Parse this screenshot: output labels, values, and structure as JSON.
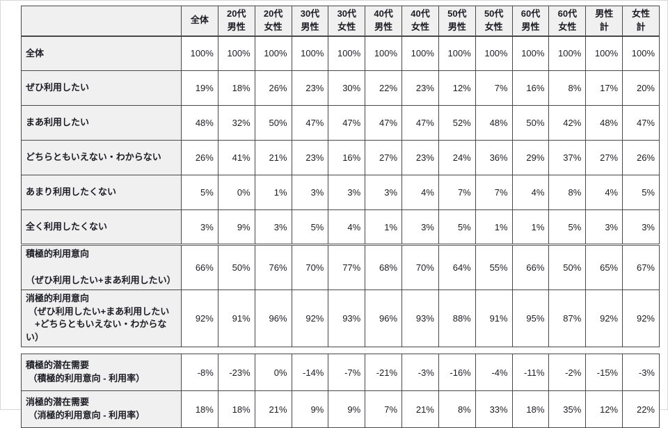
{
  "colors": {
    "frame": "#d8d8d8",
    "grid": "#474747",
    "header_bg": "#f0f0f0",
    "label_bg": "#f0f0f0",
    "cell_bg": "#ffffff",
    "text": "#1c1c24"
  },
  "header": {
    "corner": "",
    "columns": [
      "全体",
      "20代\n男性",
      "20代\n女性",
      "30代\n男性",
      "30代\n女性",
      "40代\n男性",
      "40代\n女性",
      "50代\n男性",
      "50代\n女性",
      "60代\n男性",
      "60代\n女性",
      "男性\n計",
      "女性\n計"
    ]
  },
  "responses": {
    "rows": [
      {
        "label": "全体",
        "values": [
          "100%",
          "100%",
          "100%",
          "100%",
          "100%",
          "100%",
          "100%",
          "100%",
          "100%",
          "100%",
          "100%",
          "100%",
          "100%"
        ]
      },
      {
        "label": "ぜひ利用したい",
        "values": [
          "19%",
          "18%",
          "26%",
          "23%",
          "30%",
          "22%",
          "23%",
          "12%",
          "7%",
          "16%",
          "8%",
          "17%",
          "20%"
        ]
      },
      {
        "label": "まあ利用したい",
        "values": [
          "48%",
          "32%",
          "50%",
          "47%",
          "47%",
          "47%",
          "47%",
          "52%",
          "48%",
          "50%",
          "42%",
          "48%",
          "47%"
        ]
      },
      {
        "label": "どちらともいえない・わからない",
        "values": [
          "26%",
          "41%",
          "21%",
          "23%",
          "16%",
          "27%",
          "23%",
          "24%",
          "36%",
          "29%",
          "37%",
          "27%",
          "26%"
        ]
      },
      {
        "label": "あまり利用したくない",
        "values": [
          "5%",
          "0%",
          "1%",
          "3%",
          "3%",
          "3%",
          "4%",
          "7%",
          "7%",
          "4%",
          "8%",
          "4%",
          "5%"
        ]
      },
      {
        "label": "全く利用したくない",
        "values": [
          "3%",
          "9%",
          "3%",
          "5%",
          "4%",
          "1%",
          "3%",
          "5%",
          "1%",
          "1%",
          "5%",
          "3%",
          "3%"
        ]
      }
    ]
  },
  "intent_summary": {
    "rows": [
      {
        "label": "積極的利用意向\n （ぜひ利用したい+まあ利用したい）",
        "values": [
          "66%",
          "50%",
          "76%",
          "70%",
          "77%",
          "68%",
          "70%",
          "64%",
          "55%",
          "66%",
          "50%",
          "65%",
          "67%"
        ]
      },
      {
        "label": "消極的利用意向\n （ぜひ利用したい+まあ利用したい\n　+どちらともいえない・わからない）",
        "values": [
          "92%",
          "91%",
          "96%",
          "92%",
          "93%",
          "96%",
          "93%",
          "88%",
          "91%",
          "95%",
          "87%",
          "92%",
          "92%"
        ]
      }
    ]
  },
  "latent_demand": {
    "rows": [
      {
        "label": "積極的潜在需要\n （積極的利用意向 - 利用率）",
        "values": [
          "-8%",
          "-23%",
          "0%",
          "-14%",
          "-7%",
          "-21%",
          "-3%",
          "-16%",
          "-4%",
          "-11%",
          "-2%",
          "-15%",
          "-3%"
        ]
      },
      {
        "label": "消極的潜在需要\n （消極的利用意向 - 利用率）",
        "values": [
          "18%",
          "18%",
          "21%",
          "9%",
          "9%",
          "7%",
          "21%",
          "8%",
          "33%",
          "18%",
          "35%",
          "12%",
          "22%"
        ]
      }
    ]
  }
}
